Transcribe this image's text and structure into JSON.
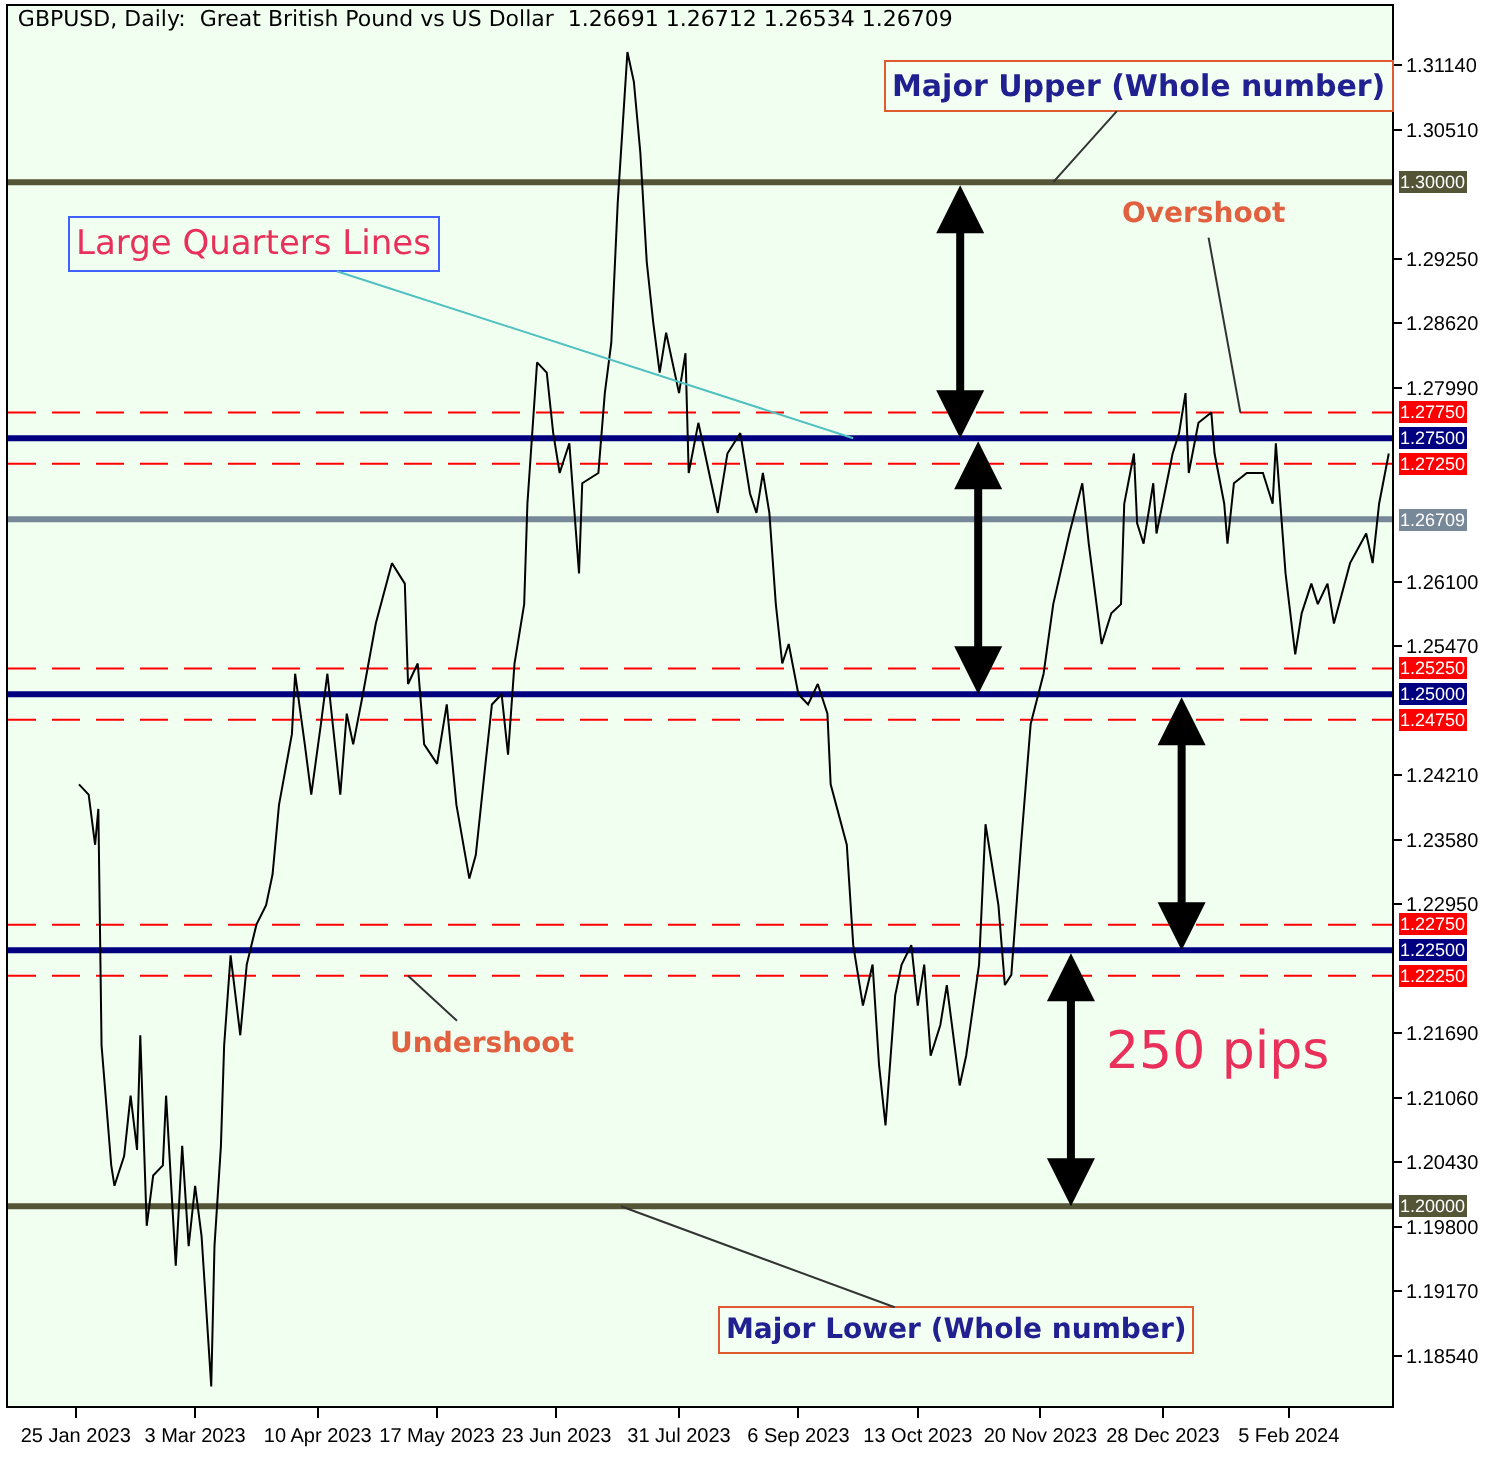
{
  "chart_data": {
    "type": "line",
    "title": "GBPUSD, Daily:  Great British Pound vs US Dollar  1.26691 1.26712 1.26534 1.26709",
    "x": [
      "2023-01-26",
      "2023-01-29",
      "2023-01-31",
      "2023-02-01",
      "2023-02-02",
      "2023-02-05",
      "2023-02-06",
      "2023-02-09",
      "2023-02-11",
      "2023-02-13",
      "2023-02-14",
      "2023-02-16",
      "2023-02-18",
      "2023-02-21",
      "2023-02-22",
      "2023-02-25",
      "2023-02-27",
      "2023-03-01",
      "2023-03-03",
      "2023-03-05",
      "2023-03-08",
      "2023-03-09",
      "2023-03-11",
      "2023-03-12",
      "2023-03-14",
      "2023-03-17",
      "2023-03-19",
      "2023-03-22",
      "2023-03-25",
      "2023-03-27",
      "2023-03-29",
      "2023-04-02",
      "2023-04-03",
      "2023-04-06",
      "2023-04-08",
      "2023-04-11",
      "2023-04-13",
      "2023-04-17",
      "2023-04-19",
      "2023-04-21",
      "2023-04-24",
      "2023-04-28",
      "2023-05-03",
      "2023-05-07",
      "2023-05-08",
      "2023-05-11",
      "2023-05-13",
      "2023-05-17",
      "2023-05-20",
      "2023-05-23",
      "2023-05-27",
      "2023-05-29",
      "2023-06-01",
      "2023-06-03",
      "2023-06-06",
      "2023-06-08",
      "2023-06-10",
      "2023-06-13",
      "2023-06-14",
      "2023-06-17",
      "2023-06-20",
      "2023-06-22",
      "2023-06-24",
      "2023-06-27",
      "2023-06-30",
      "2023-07-01",
      "2023-07-06",
      "2023-07-08",
      "2023-07-10",
      "2023-07-12",
      "2023-07-15",
      "2023-07-17",
      "2023-07-19",
      "2023-07-21",
      "2023-07-23",
      "2023-07-25",
      "2023-07-27",
      "2023-07-31",
      "2023-08-02",
      "2023-08-03",
      "2023-08-06",
      "2023-08-10",
      "2023-08-12",
      "2023-08-15",
      "2023-08-19",
      "2023-08-22",
      "2023-08-24",
      "2023-08-26",
      "2023-08-28",
      "2023-08-30",
      "2023-09-01",
      "2023-09-03",
      "2023-09-06",
      "2023-09-09",
      "2023-09-12",
      "2023-09-15",
      "2023-09-16",
      "2023-09-21",
      "2023-09-23",
      "2023-09-26",
      "2023-09-29",
      "2023-10-01",
      "2023-10-03",
      "2023-10-06",
      "2023-10-08",
      "2023-10-11",
      "2023-10-13",
      "2023-10-15",
      "2023-10-17",
      "2023-10-20",
      "2023-10-22",
      "2023-10-26",
      "2023-10-28",
      "2023-11-01",
      "2023-11-03",
      "2023-11-07",
      "2023-11-09",
      "2023-11-11",
      "2023-11-14",
      "2023-11-17",
      "2023-11-21",
      "2023-11-24",
      "2023-11-29",
      "2023-12-03",
      "2023-12-05",
      "2023-12-09",
      "2023-12-12",
      "2023-12-15",
      "2023-12-16",
      "2023-12-19",
      "2023-12-20",
      "2023-12-22",
      "2023-12-25",
      "2023-12-26",
      "2023-12-31",
      "2024-01-02",
      "2024-01-04",
      "2024-01-05",
      "2024-01-08",
      "2024-01-12",
      "2024-01-13",
      "2024-01-16",
      "2024-01-17",
      "2024-01-19",
      "2024-01-23",
      "2024-01-28",
      "2024-01-31",
      "2024-02-01",
      "2024-02-04",
      "2024-02-07",
      "2024-02-09",
      "2024-02-12",
      "2024-02-14",
      "2024-02-17",
      "2024-02-19",
      "2024-02-24",
      "2024-02-29",
      "2024-03-02",
      "2024-03-04",
      "2024-03-07"
    ],
    "values": [
      1.2412,
      1.2402,
      1.2353,
      1.2388,
      1.2157,
      1.204,
      1.202,
      1.2049,
      1.2108,
      1.2055,
      1.2167,
      1.1981,
      1.203,
      1.204,
      1.2108,
      1.1942,
      1.2059,
      1.1961,
      1.202,
      1.1971,
      1.1824,
      1.1961,
      1.2059,
      1.2157,
      1.2245,
      1.2167,
      1.2236,
      1.2275,
      1.2294,
      1.2324,
      1.2392,
      1.2461,
      1.252,
      1.2451,
      1.2402,
      1.2471,
      1.252,
      1.2402,
      1.2481,
      1.2451,
      1.25,
      1.2569,
      1.2628,
      1.2608,
      1.251,
      1.253,
      1.2451,
      1.2432,
      1.249,
      1.2392,
      1.232,
      1.2343,
      1.2432,
      1.249,
      1.25,
      1.2441,
      1.253,
      1.2588,
      1.2686,
      1.2824,
      1.2814,
      1.2755,
      1.2716,
      1.2745,
      1.2618,
      1.2706,
      1.2716,
      1.2794,
      1.2843,
      1.298,
      1.3127,
      1.3098,
      1.3029,
      1.2922,
      1.2863,
      1.2814,
      1.2853,
      1.2794,
      1.2833,
      1.2716,
      1.2765,
      1.2706,
      1.2677,
      1.2735,
      1.2755,
      1.2696,
      1.2677,
      1.2716,
      1.2677,
      1.2588,
      1.253,
      1.2549,
      1.25,
      1.249,
      1.251,
      1.2481,
      1.2412,
      1.2353,
      1.2255,
      1.2196,
      1.2236,
      1.2138,
      1.2079,
      1.2206,
      1.2236,
      1.2255,
      1.2196,
      1.2236,
      1.2147,
      1.2177,
      1.2216,
      1.2118,
      1.2147,
      1.2236,
      1.2373,
      1.2294,
      1.2216,
      1.2226,
      1.2353,
      1.2471,
      1.252,
      1.2588,
      1.2657,
      1.2706,
      1.2647,
      1.2549,
      1.2579,
      1.2588,
      1.2686,
      1.2735,
      1.2667,
      1.2647,
      1.2706,
      1.2657,
      1.2735,
      1.2755,
      1.2794,
      1.2716,
      1.2765,
      1.2775,
      1.2735,
      1.2686,
      1.2647,
      1.2706,
      1.2716,
      1.2716,
      1.2686,
      1.2745,
      1.2618,
      1.2539,
      1.2579,
      1.2608,
      1.2588,
      1.2608,
      1.2569,
      1.2628,
      1.2657,
      1.2628,
      1.2686,
      1.2735
    ],
    "color": "#000000",
    "xlim": [
      "2023-01-04",
      "2024-03-08"
    ],
    "xticks": [
      {
        "value": "2023-01-25",
        "label": "25 Jan 2023"
      },
      {
        "value": "2023-03-03",
        "label": "3 Mar 2023"
      },
      {
        "value": "2023-04-10",
        "label": "10 Apr 2023"
      },
      {
        "value": "2023-05-17",
        "label": "17 May 2023"
      },
      {
        "value": "2023-06-23",
        "label": "23 Jun 2023"
      },
      {
        "value": "2023-07-31",
        "label": "31 Jul 2023"
      },
      {
        "value": "2023-09-06",
        "label": "6 Sep 2023"
      },
      {
        "value": "2023-10-13",
        "label": "13 Oct 2023"
      },
      {
        "value": "2023-11-20",
        "label": "20 Nov 2023"
      },
      {
        "value": "2023-12-28",
        "label": "28 Dec 2023"
      },
      {
        "value": "2024-02-05",
        "label": "5 Feb 2024"
      }
    ],
    "ylim": [
      1.1805,
      1.3172
    ],
    "yticks": [
      {
        "value": 1.3114,
        "label": "1.31140"
      },
      {
        "value": 1.3051,
        "label": "1.30510"
      },
      {
        "value": 1.2925,
        "label": "1.29250"
      },
      {
        "value": 1.2862,
        "label": "1.28620"
      },
      {
        "value": 1.2799,
        "label": "1.27990"
      },
      {
        "value": 1.261,
        "label": "1.26100"
      },
      {
        "value": 1.2547,
        "label": "1.25470"
      },
      {
        "value": 1.2421,
        "label": "1.24210"
      },
      {
        "value": 1.2358,
        "label": "1.23580"
      },
      {
        "value": 1.2295,
        "label": "1.22950"
      },
      {
        "value": 1.2169,
        "label": "1.21690"
      },
      {
        "value": 1.2106,
        "label": "1.21060"
      },
      {
        "value": 1.2043,
        "label": "1.20430"
      },
      {
        "value": 1.198,
        "label": "1.19800"
      },
      {
        "value": 1.1917,
        "label": "1.19170"
      },
      {
        "value": 1.1854,
        "label": "1.18540"
      }
    ],
    "ref_lines": [
      {
        "axis": "y",
        "value": 1.3,
        "label": "1.30000",
        "color": "#545436",
        "line_style": "solid"
      },
      {
        "axis": "y",
        "value": 1.2775,
        "label": "1.27750",
        "color": "#ff0000",
        "line_style": "dashed"
      },
      {
        "axis": "y",
        "value": 1.275,
        "label": "1.27500",
        "color": "#000080",
        "line_style": "solid"
      },
      {
        "axis": "y",
        "value": 1.2725,
        "label": "1.27250",
        "color": "#ff0000",
        "line_style": "dashed"
      },
      {
        "axis": "y",
        "value": 1.26709,
        "label": "1.26709",
        "color": "#778899",
        "line_style": "solid"
      },
      {
        "axis": "y",
        "value": 1.2525,
        "label": "1.25250",
        "color": "#ff0000",
        "line_style": "dashed"
      },
      {
        "axis": "y",
        "value": 1.25,
        "label": "1.25000",
        "color": "#000080",
        "line_style": "solid"
      },
      {
        "axis": "y",
        "value": 1.2475,
        "label": "1.24750",
        "color": "#ff0000",
        "line_style": "dashed"
      },
      {
        "axis": "y",
        "value": 1.2275,
        "label": "1.22750",
        "color": "#ff0000",
        "line_style": "dashed"
      },
      {
        "axis": "y",
        "value": 1.225,
        "label": "1.22500",
        "color": "#000080",
        "line_style": "solid"
      },
      {
        "axis": "y",
        "value": 1.2225,
        "label": "1.22250",
        "color": "#ff0000",
        "line_style": "dashed"
      },
      {
        "axis": "y",
        "value": 1.2,
        "label": "1.20000",
        "color": "#545436",
        "line_style": "solid"
      }
    ],
    "annotations": [
      {
        "text": "Major Upper (Whole number)",
        "x": "2023-11-24",
        "y": 1.3
      },
      {
        "text": "Large Quarters Lines",
        "x": "2023-09-23",
        "y": 1.275
      },
      {
        "text": "Overshoot",
        "x": "2024-01-21",
        "y": 1.2775
      },
      {
        "text": "Undershoot",
        "x": "2023-05-08",
        "y": 1.2225
      },
      "250 pips",
      {
        "text": "Major Lower (Whole number)",
        "x": "2023-07-13",
        "y": 1.2
      }
    ],
    "grid": false,
    "legend": false,
    "marker": "none",
    "line_style": "solid"
  }
}
